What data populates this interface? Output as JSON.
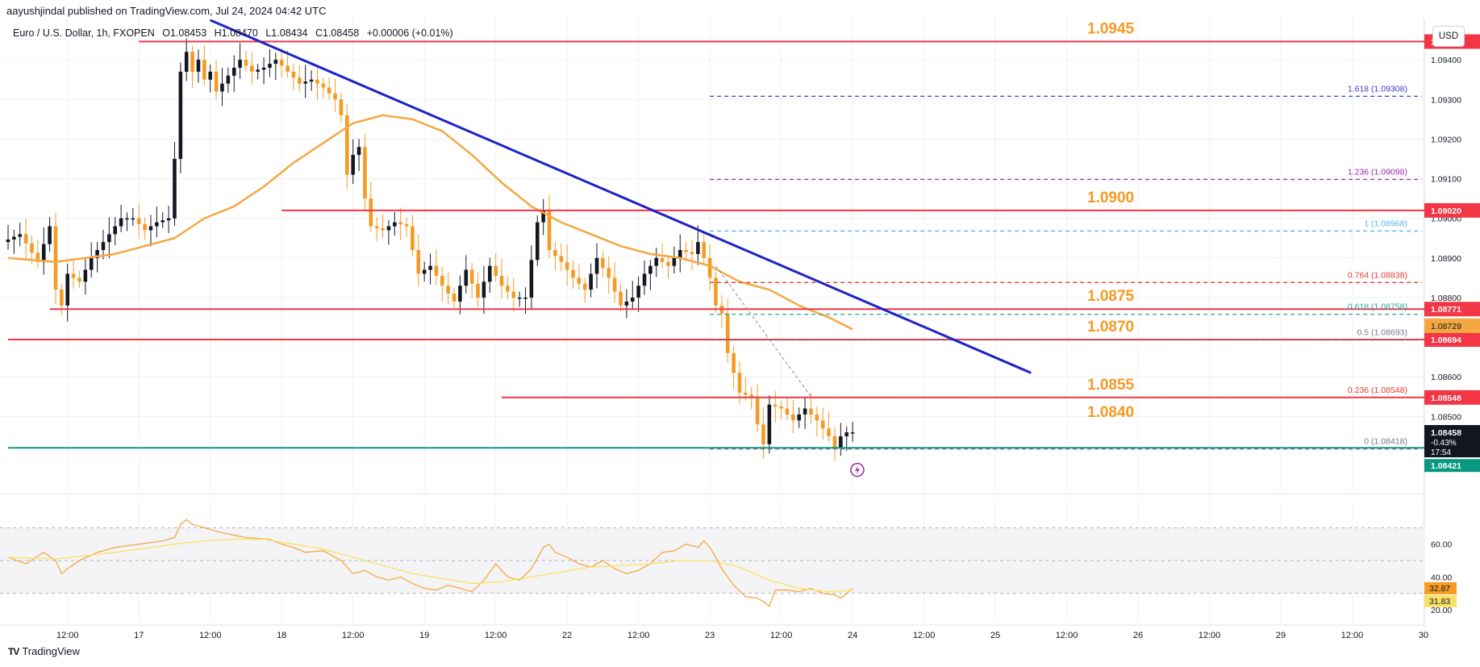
{
  "header": {
    "published": "aayushjindal published on TradingView.com, Jul 24, 2024 04:42 UTC",
    "symbol": "Euro / U.S. Dollar, 1h, FXOPEN",
    "open": "O1.08453",
    "high": "H1.08470",
    "low": "L1.08434",
    "close": "C1.08458",
    "change": "+0.00006 (+0.01%)",
    "currency_button": "USD"
  },
  "brand": {
    "name": "TradingView",
    "logo_text": "TV"
  },
  "colors": {
    "up": "#131722",
    "down": "#f59a23",
    "sma": "#f5a742",
    "trend": "#1e22c9",
    "level": "#f23645",
    "level_label": "#f59a23",
    "support": "#089981",
    "rsi": "#f5a742",
    "rsi_ma": "#f7e265"
  },
  "chart_data": {
    "type": "candlestick",
    "symbol": "EURUSD",
    "timeframe": "1h",
    "ylim": [
      1.0834,
      1.095
    ],
    "y_ticks": [
      "1.09400",
      "1.09300",
      "1.09200",
      "1.09100",
      "1.09000",
      "1.08900",
      "1.08800",
      "1.08600",
      "1.08500"
    ],
    "x_ticks": [
      {
        "label": "12:00",
        "t": 12
      },
      {
        "label": "17",
        "t": 24
      },
      {
        "label": "12:00",
        "t": 36
      },
      {
        "label": "18",
        "t": 48
      },
      {
        "label": "12:00",
        "t": 60
      },
      {
        "label": "19",
        "t": 72
      },
      {
        "label": "12:00",
        "t": 84
      },
      {
        "label": "22",
        "t": 96
      },
      {
        "label": "12:00",
        "t": 108
      },
      {
        "label": "23",
        "t": 120
      },
      {
        "label": "12:00",
        "t": 132
      },
      {
        "label": "24",
        "t": 144
      },
      {
        "label": "12:00",
        "t": 156
      },
      {
        "label": "25",
        "t": 168
      },
      {
        "label": "12:00",
        "t": 180
      },
      {
        "label": "26",
        "t": 192
      },
      {
        "label": "12:00",
        "t": 204
      },
      {
        "label": "29",
        "t": 216
      },
      {
        "label": "12:00",
        "t": 228
      },
      {
        "label": "30",
        "t": 240
      }
    ],
    "t_range": [
      2,
      240
    ],
    "anchors": [
      [
        2,
        1.0894
      ],
      [
        5,
        1.0896
      ],
      [
        8,
        1.0889
      ],
      [
        10,
        1.0898
      ],
      [
        11,
        1.0882
      ],
      [
        12,
        1.0878
      ],
      [
        13,
        1.0886
      ],
      [
        15,
        1.0884
      ],
      [
        17,
        1.089
      ],
      [
        20,
        1.0896
      ],
      [
        22,
        1.09
      ],
      [
        24,
        1.09
      ],
      [
        26,
        1.0897
      ],
      [
        28,
        1.0899
      ],
      [
        30,
        1.09
      ],
      [
        31,
        1.0915
      ],
      [
        32,
        1.0937
      ],
      [
        33,
        1.0942
      ],
      [
        34,
        1.0937
      ],
      [
        35,
        1.094
      ],
      [
        36,
        1.0935
      ],
      [
        37,
        1.0937
      ],
      [
        38,
        1.0932
      ],
      [
        40,
        1.0936
      ],
      [
        42,
        1.094
      ],
      [
        44,
        1.0937
      ],
      [
        46,
        1.0938
      ],
      [
        48,
        1.094
      ],
      [
        50,
        1.0937
      ],
      [
        52,
        1.0934
      ],
      [
        54,
        1.0935
      ],
      [
        56,
        1.0933
      ],
      [
        58,
        1.093
      ],
      [
        59,
        1.0926
      ],
      [
        60,
        1.0911
      ],
      [
        61,
        1.0916
      ],
      [
        62,
        1.0918
      ],
      [
        63,
        1.0905
      ],
      [
        64,
        1.0898
      ],
      [
        66,
        1.0897
      ],
      [
        68,
        1.0899
      ],
      [
        70,
        1.0898
      ],
      [
        72,
        1.0886
      ],
      [
        74,
        1.0888
      ],
      [
        76,
        1.0883
      ],
      [
        78,
        1.0879
      ],
      [
        80,
        1.0887
      ],
      [
        82,
        1.088
      ],
      [
        84,
        1.0888
      ],
      [
        86,
        1.0883
      ],
      [
        88,
        1.088
      ],
      [
        90,
        1.088
      ],
      [
        92,
        1.0899
      ],
      [
        93,
        1.0902
      ],
      [
        94,
        1.0892
      ],
      [
        96,
        1.0889
      ],
      [
        98,
        1.0885
      ],
      [
        100,
        1.0882
      ],
      [
        101,
        1.0886
      ],
      [
        102,
        1.089
      ],
      [
        104,
        1.0885
      ],
      [
        106,
        1.0878
      ],
      [
        108,
        1.088
      ],
      [
        110,
        1.0886
      ],
      [
        112,
        1.089
      ],
      [
        114,
        1.0888
      ],
      [
        116,
        1.0892
      ],
      [
        118,
        1.0891
      ],
      [
        119,
        1.0894
      ],
      [
        120,
        1.089
      ],
      [
        121,
        1.0885
      ],
      [
        122,
        1.0878
      ],
      [
        123,
        1.0876
      ],
      [
        124,
        1.0866
      ],
      [
        126,
        1.0856
      ],
      [
        128,
        1.0855
      ],
      [
        129,
        1.0848
      ],
      [
        130,
        1.0843
      ],
      [
        131,
        1.0853
      ],
      [
        133,
        1.0852
      ],
      [
        135,
        1.0849
      ],
      [
        137,
        1.0852
      ],
      [
        139,
        1.0849
      ],
      [
        141,
        1.0845
      ],
      [
        142,
        1.0842
      ],
      [
        143,
        1.0845
      ],
      [
        144,
        1.0846
      ]
    ],
    "sma": [
      [
        2,
        1.089
      ],
      [
        10,
        1.0889
      ],
      [
        20,
        1.0891
      ],
      [
        30,
        1.0895
      ],
      [
        35,
        1.09
      ],
      [
        40,
        1.0903
      ],
      [
        45,
        1.0908
      ],
      [
        50,
        1.0914
      ],
      [
        55,
        1.0919
      ],
      [
        60,
        1.0924
      ],
      [
        65,
        1.0926
      ],
      [
        70,
        1.0925
      ],
      [
        75,
        1.0922
      ],
      [
        80,
        1.0916
      ],
      [
        85,
        1.0909
      ],
      [
        90,
        1.0903
      ],
      [
        95,
        1.0899
      ],
      [
        100,
        1.0896
      ],
      [
        105,
        1.0893
      ],
      [
        110,
        1.0891
      ],
      [
        115,
        1.089
      ],
      [
        120,
        1.0888
      ],
      [
        125,
        1.0884
      ],
      [
        130,
        1.0882
      ],
      [
        135,
        1.0878
      ],
      [
        140,
        1.0875
      ],
      [
        144,
        1.0872
      ]
    ],
    "trendline": {
      "from": [
        36,
        1.095
      ],
      "to": [
        174,
        1.0861
      ]
    },
    "levels": [
      {
        "price": 1.09446,
        "label": "1.0945",
        "axis_label": "1.09446",
        "from_t": 24
      },
      {
        "price": 1.0902,
        "label": "1.0900",
        "axis_label": "1.09020",
        "from_t": 48
      },
      {
        "price": 1.08771,
        "label": "1.0875",
        "axis_label": "1.08771",
        "from_t": 9
      },
      {
        "price": 1.08694,
        "label": "1.0870",
        "axis_label": "1.08694",
        "from_t": 2
      },
      {
        "price": 1.08548,
        "label": "1.0855",
        "axis_label": "1.08548",
        "from_t": 85
      }
    ],
    "support": {
      "price": 1.08421,
      "label": "1.0840",
      "axis_label": "1.08421"
    },
    "last_price": {
      "price": 1.08458,
      "value": "1.08458",
      "change": "-0.43%",
      "countdown": "17:54"
    },
    "sma_axis_label": {
      "price": 1.08729,
      "value": "1.08729"
    },
    "fib_levels": [
      {
        "price": 1.09308,
        "label": "1.618 (1.09308)",
        "color": "#3c3cc9"
      },
      {
        "price": 1.09098,
        "label": "1.236 (1.09098)",
        "color": "#9c27b0"
      },
      {
        "price": 1.08968,
        "label": "1 (1.08968)",
        "color": "#5ab4f0"
      },
      {
        "price": 1.08838,
        "label": "0.764 (1.08838)",
        "color": "#e53935"
      },
      {
        "price": 1.08758,
        "label": "0.618 (1.08758)",
        "color": "#26a69a"
      },
      {
        "price": 1.08693,
        "label": "0.5 (1.08693)",
        "color": "#787b86"
      },
      {
        "price": 1.08548,
        "label": "0.236 (1.08548)",
        "color": "#e53935"
      },
      {
        "price": 1.08418,
        "label": "0 (1.08418)",
        "color": "#787b86"
      }
    ],
    "fib_from_t": 120,
    "diag_guide": {
      "from": [
        121,
        1.0888
      ],
      "to": [
        137,
        1.0855
      ]
    },
    "rsi": {
      "ylim": [
        18,
        82
      ],
      "ticks": [
        "60.00",
        "40.00",
        "20.00"
      ],
      "bands": [
        70,
        50,
        30
      ],
      "value": "32.87",
      "ma_value": "31.83",
      "anchors": [
        [
          2,
          52
        ],
        [
          5,
          48
        ],
        [
          8,
          55
        ],
        [
          10,
          50
        ],
        [
          11,
          42
        ],
        [
          12,
          45
        ],
        [
          14,
          50
        ],
        [
          17,
          55
        ],
        [
          20,
          58
        ],
        [
          24,
          60
        ],
        [
          28,
          62
        ],
        [
          30,
          64
        ],
        [
          31,
          72
        ],
        [
          32,
          75
        ],
        [
          33,
          72
        ],
        [
          35,
          70
        ],
        [
          38,
          67
        ],
        [
          42,
          64
        ],
        [
          46,
          63
        ],
        [
          48,
          60
        ],
        [
          50,
          58
        ],
        [
          52,
          55
        ],
        [
          55,
          56
        ],
        [
          58,
          50
        ],
        [
          60,
          42
        ],
        [
          62,
          44
        ],
        [
          64,
          40
        ],
        [
          66,
          38
        ],
        [
          68,
          40
        ],
        [
          70,
          36
        ],
        [
          72,
          33
        ],
        [
          74,
          32
        ],
        [
          76,
          35
        ],
        [
          78,
          33
        ],
        [
          80,
          31
        ],
        [
          82,
          38
        ],
        [
          84,
          48
        ],
        [
          86,
          40
        ],
        [
          88,
          38
        ],
        [
          90,
          45
        ],
        [
          92,
          58
        ],
        [
          93,
          60
        ],
        [
          94,
          55
        ],
        [
          96,
          52
        ],
        [
          98,
          48
        ],
        [
          100,
          46
        ],
        [
          102,
          50
        ],
        [
          104,
          45
        ],
        [
          106,
          42
        ],
        [
          108,
          44
        ],
        [
          110,
          48
        ],
        [
          112,
          55
        ],
        [
          114,
          56
        ],
        [
          116,
          60
        ],
        [
          118,
          58
        ],
        [
          119,
          62
        ],
        [
          120,
          58
        ],
        [
          121,
          52
        ],
        [
          122,
          45
        ],
        [
          124,
          35
        ],
        [
          126,
          28
        ],
        [
          128,
          27
        ],
        [
          129,
          25
        ],
        [
          130,
          22
        ],
        [
          131,
          32
        ],
        [
          133,
          32
        ],
        [
          135,
          31
        ],
        [
          137,
          33
        ],
        [
          139,
          30
        ],
        [
          141,
          29
        ],
        [
          142,
          27
        ],
        [
          143,
          30
        ],
        [
          144,
          33
        ]
      ],
      "ma_anchors": [
        [
          2,
          52
        ],
        [
          10,
          51
        ],
        [
          20,
          55
        ],
        [
          30,
          60
        ],
        [
          35,
          62
        ],
        [
          40,
          63
        ],
        [
          45,
          63
        ],
        [
          50,
          60
        ],
        [
          55,
          57
        ],
        [
          60,
          52
        ],
        [
          65,
          47
        ],
        [
          70,
          42
        ],
        [
          75,
          39
        ],
        [
          80,
          36
        ],
        [
          85,
          37
        ],
        [
          90,
          40
        ],
        [
          95,
          43
        ],
        [
          100,
          46
        ],
        [
          105,
          47
        ],
        [
          110,
          48
        ],
        [
          115,
          50
        ],
        [
          120,
          50
        ],
        [
          125,
          46
        ],
        [
          130,
          38
        ],
        [
          135,
          33
        ],
        [
          140,
          31
        ],
        [
          144,
          31.8
        ]
      ]
    }
  }
}
